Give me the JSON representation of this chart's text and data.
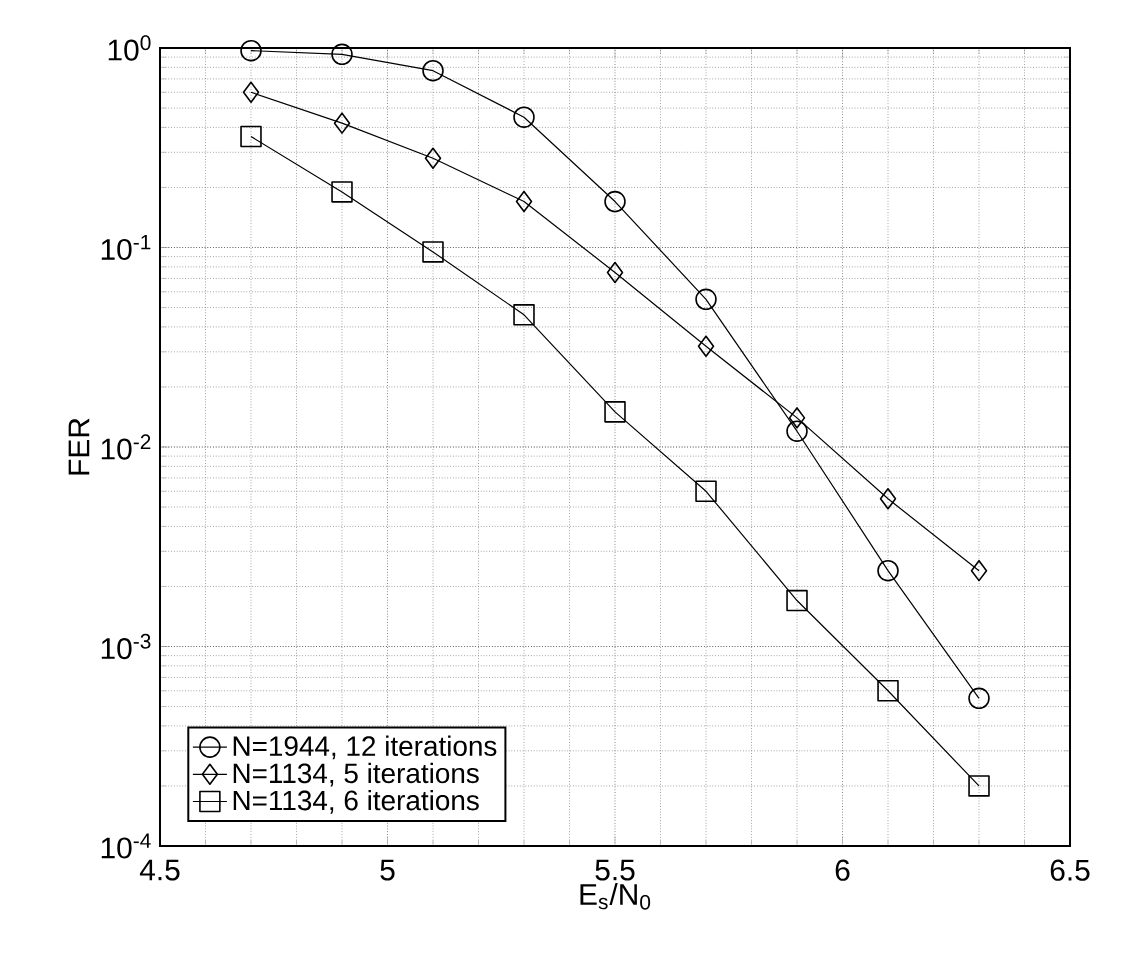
{
  "chart_data": {
    "type": "line",
    "xlabel": "E$_{s}$/N$_{0}$",
    "ylabel": "FER",
    "log": "y",
    "grid": true,
    "legend": "bottom left",
    "x": [
      4.7,
      4.9,
      5.1,
      5.3,
      5.5,
      5.7,
      5.9,
      6.1,
      6.3
    ],
    "xlim": [
      4.5,
      6.5
    ],
    "xticks": [
      4.5,
      5,
      5.5,
      6,
      6.5
    ],
    "ylim": [
      0.0001,
      1
    ],
    "yticks": [
      {
        "value": 0.0001,
        "label": "10$^{-4}$"
      },
      {
        "value": 0.001,
        "label": "10$^{-3}$"
      },
      {
        "value": 0.01,
        "label": "10$^{-2}$"
      },
      {
        "value": 0.1,
        "label": "10$^{-1}$"
      },
      {
        "value": 1,
        "label": "10$^{0}$"
      }
    ],
    "series": [
      {
        "name": "N=1944, 12 iterations",
        "color": "#000000",
        "marker": "circle",
        "values": [
          0.97,
          0.93,
          0.77,
          0.45,
          0.17,
          0.055,
          0.012,
          0.0024,
          0.00055
        ]
      },
      {
        "name": "N=1134, 5 iterations",
        "color": "#000000",
        "marker": "diamond",
        "values": [
          0.6,
          0.42,
          0.28,
          0.17,
          0.075,
          0.032,
          0.014,
          0.0055,
          0.0024
        ]
      },
      {
        "name": "N=1134, 6 iterations",
        "color": "#000000",
        "marker": "square",
        "values": [
          0.36,
          0.19,
          0.095,
          0.046,
          0.015,
          0.006,
          0.0017,
          0.0006,
          0.0002
        ]
      }
    ]
  }
}
